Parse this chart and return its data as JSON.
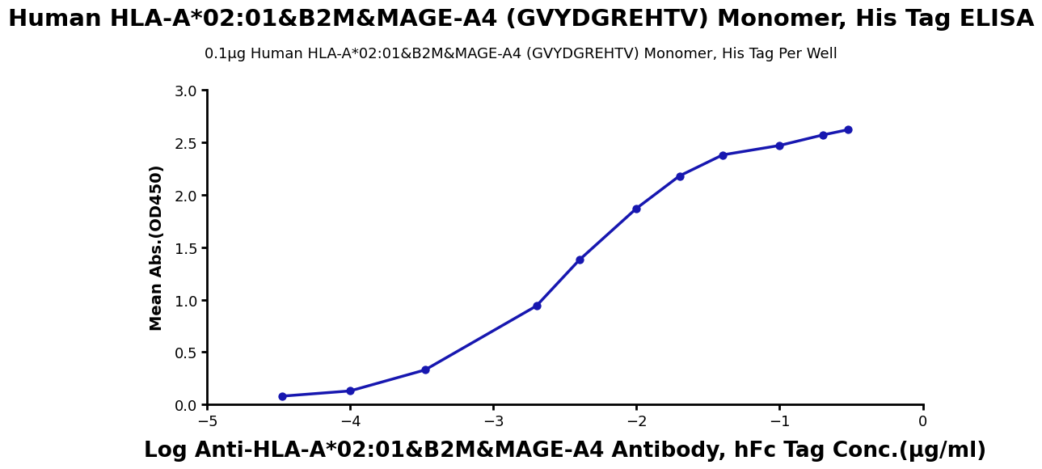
{
  "title": "Human HLA-A*02:01&B2M&MAGE-A4 (GVYDGREHTV) Monomer, His Tag ELISA",
  "subtitle": "0.1μg Human HLA-A*02:01&B2M&MAGE-A4 (GVYDGREHTV) Monomer, His Tag Per Well",
  "xlabel": "Log Anti-HLA-A*02:01&B2M&MAGE-A4 Antibody, hFc Tag Conc.(μg/ml)",
  "ylabel": "Mean Abs.(OD450)",
  "x_data": [
    -4.477,
    -4.0,
    -3.477,
    -2.699,
    -2.398,
    -2.0,
    -1.699,
    -1.398,
    -1.0,
    -0.699,
    -0.523
  ],
  "y_data": [
    0.08,
    0.13,
    0.33,
    0.94,
    1.38,
    1.87,
    2.18,
    2.38,
    2.47,
    2.57,
    2.62
  ],
  "xlim": [
    -5,
    0
  ],
  "ylim": [
    0,
    3.0
  ],
  "xticks": [
    -5,
    -4,
    -3,
    -2,
    -1,
    0
  ],
  "yticks": [
    0.0,
    0.5,
    1.0,
    1.5,
    2.0,
    2.5,
    3.0
  ],
  "line_color": "#1717b0",
  "dot_color": "#1717b0",
  "background_color": "#ffffff",
  "title_fontsize": 21,
  "subtitle_fontsize": 13,
  "xlabel_fontsize": 19,
  "ylabel_fontsize": 14,
  "tick_fontsize": 13,
  "dot_size": 55,
  "line_width": 2.5
}
